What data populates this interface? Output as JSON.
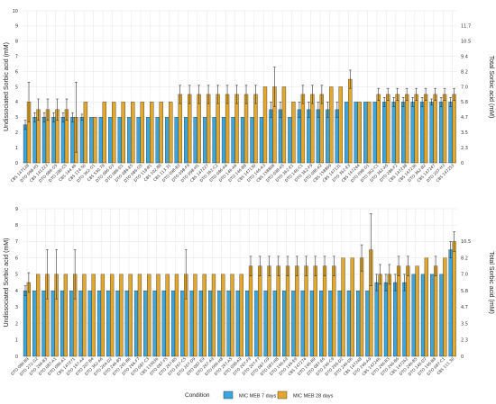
{
  "colors": {
    "mic7": "#3aa6dd",
    "mic28": "#e2a72b"
  },
  "legend": {
    "title": "Condition",
    "items": [
      {
        "label": "MIC MEB 7 days",
        "color": "#3aa6dd"
      },
      {
        "label": "MIC MEB 28 days",
        "color": "#e2a72b"
      }
    ]
  },
  "chart_data": [
    {
      "type": "bar",
      "ylabel": "Undissociated Sorbic acid (mM)",
      "ylabel_right": "Total Sorbic acid (mM)",
      "ylim": [
        0,
        10
      ],
      "yticks": [
        0,
        1,
        2,
        3,
        4,
        5,
        6,
        7,
        8,
        9,
        10
      ],
      "yticks_right": [
        "0",
        "2.3",
        "3.5",
        "4.7",
        "5.8",
        "7.0",
        "8.2",
        "9.4",
        "10.5",
        "11.7"
      ],
      "grid": true,
      "categories": [
        "CBS 147128",
        "DTO 098-H1",
        "CBS 141223",
        "DTO 086-G5",
        "DTO 286-C5",
        "CBS 144.46",
        "CBS 114.50",
        "DTO 362-G1",
        "CBS 530.78",
        "DTO 086-D3",
        "DTO 086-D1",
        "DTO 086-E5",
        "DTO 086-G5",
        "DTO 118-B1",
        "CBS 102.88",
        "CBS 113.31",
        "DTO 098-B3",
        "DTO 098-F9",
        "DTO 098-H1",
        "CBS 147227",
        "DTO 362-C2",
        "DTO 086-A6",
        "DTO 146-A6",
        "DTO 146-B8",
        "CBS 147130",
        "DTO 146-A3",
        "CBS 158808",
        "DTO 098-A5",
        "DTO 362-E1",
        "DTO 146-C1",
        "DTO 362-F9",
        "DTO 086-A2",
        "CBS 158809",
        "CBS 147131",
        "DTO 362-E3",
        "CBS 147244",
        "DTO 098-G1",
        "DTO 362-C1",
        "DTO 362-A5",
        "DTO 286-F2",
        "CBS 147238",
        "CBS 147236",
        "DTO 362-B2",
        "CBS 147247",
        "DTO 207-H3",
        "CBS 147253"
      ],
      "series": [
        {
          "name": "MIC MEB 7 days",
          "values": [
            2.5,
            3,
            3,
            3,
            3,
            3,
            3,
            3,
            3,
            3,
            3,
            3,
            3,
            3,
            3,
            3,
            3,
            3,
            3,
            3,
            3,
            3,
            3,
            3,
            3,
            3,
            3.5,
            3.5,
            3,
            3.5,
            3.5,
            3.5,
            3.5,
            3.5,
            4,
            4,
            4,
            4,
            4,
            4,
            4,
            4,
            4,
            4,
            4,
            4
          ],
          "err": [
            0.3,
            0.3,
            0.3,
            0.3,
            0.3,
            0.3,
            0.2,
            0,
            0,
            0,
            0,
            0,
            0,
            0,
            0,
            0,
            0,
            0,
            0,
            0,
            0,
            0,
            0,
            0,
            0,
            0,
            0.5,
            0.5,
            0,
            0.5,
            0.5,
            0.5,
            0.5,
            0.5,
            0,
            0,
            0,
            0,
            0.3,
            0.3,
            0.3,
            0.3,
            0.3,
            0.2,
            0.3,
            0.3
          ]
        },
        {
          "name": "MIC MEB 28 days",
          "values": [
            4,
            3.5,
            3.5,
            3.5,
            3.5,
            3,
            4,
            3,
            4,
            4,
            4,
            4,
            4,
            4,
            4,
            4,
            4.5,
            4.5,
            4.5,
            4.5,
            4.5,
            4.5,
            4.5,
            4.5,
            4.5,
            5,
            5,
            5,
            4,
            4.5,
            4.5,
            4.5,
            5,
            5,
            5.5,
            4,
            4,
            4.5,
            4.5,
            4.5,
            4.5,
            4.5,
            4.5,
            4.5,
            4.5,
            4.5
          ],
          "err": [
            1.3,
            0.7,
            0.7,
            0.7,
            0.7,
            2.3,
            0,
            0,
            0,
            0,
            0,
            0,
            0,
            0,
            0,
            0,
            0.6,
            0.6,
            0.6,
            0.6,
            0.6,
            0.6,
            0.6,
            0.6,
            0.6,
            0,
            1.3,
            0,
            0,
            0.6,
            0.6,
            0.6,
            0,
            0,
            0.6,
            0,
            0,
            0.4,
            0.4,
            0.4,
            0.4,
            0.4,
            0.4,
            0.4,
            0.4,
            0.4
          ]
        }
      ]
    },
    {
      "type": "bar",
      "ylabel": "Undissociated Sorbic acid (mM)",
      "ylabel_right": "Total Sorbic acid (mM)",
      "ylim": [
        0,
        9
      ],
      "yticks": [
        0,
        1,
        2,
        3,
        4,
        5,
        6,
        7,
        8,
        9
      ],
      "yticks_right": [
        "0",
        "2.3",
        "3.5",
        "4.7",
        "5.8",
        "7.0",
        "8.2",
        "10.5"
      ],
      "grid": true,
      "categories": [
        "DTO 086-B9",
        "DTO 272-G2",
        "DTO 266-B3",
        "DTO 087-A1",
        "DTO 086-A1",
        "CBS 147271",
        "DTO 167-A4",
        "DTO 207-B4",
        "DTO 362-A6",
        "DTO 264-D2",
        "DTO 246-B5",
        "DTO 241-B6",
        "DTO 266-F7",
        "DTO 087-C3",
        "CBS 133036",
        "DTO 087-F5",
        "DTO 267-B5",
        "DTO 267-C5",
        "DTO 207-D9",
        "DTO 087-E9",
        "DTO 267-A9",
        "DTO 066-H8",
        "DTO 267-A5",
        "DTO 098-A9",
        "DTO 207-F9",
        "DTO 207-F7",
        "DTO 087-G9",
        "DTO 087-H8",
        "DTO 146-A9",
        "DTO 146-E9",
        "CBS 147274",
        "DTO 146-B9",
        "DTO 087-E6",
        "DTO 246-C9",
        "DTO 266-D2",
        "DTO 246-D6",
        "CBS 147248",
        "DTO 246-A9",
        "CBS 147246",
        "DTO 246-B3",
        "DTO 246-B6",
        "CBS 147262",
        "DTO 246-B5",
        "DTO 146-D7",
        "DTO 146-B8",
        "DTO 087-C1",
        "CBS 111.30"
      ],
      "series": [
        {
          "name": "MIC MEB 7 days",
          "values": [
            4,
            4,
            4,
            4,
            4,
            4,
            4,
            4,
            4,
            4,
            4,
            4,
            4,
            4,
            4,
            4,
            4,
            4,
            4,
            4,
            4,
            4,
            4,
            4,
            4,
            4,
            4,
            4,
            4,
            4,
            4,
            4,
            4,
            4,
            4,
            4,
            4,
            4,
            4.5,
            4.5,
            4.5,
            4.5,
            5,
            5,
            5,
            5,
            6.5
          ],
          "err": [
            0.3,
            0,
            0,
            0,
            0,
            0,
            0,
            0,
            0,
            0,
            0,
            0,
            0,
            0,
            0,
            0,
            0,
            0,
            0,
            0,
            0,
            0,
            0,
            0,
            0,
            0,
            0,
            0,
            0,
            0,
            0,
            0,
            0,
            0,
            0,
            0,
            0,
            0,
            0.5,
            0.5,
            0.5,
            0.5,
            0,
            0,
            0,
            0,
            0.5
          ]
        },
        {
          "name": "MIC MEB 28 days",
          "values": [
            4.5,
            5,
            5,
            5,
            5,
            5,
            5,
            5,
            5,
            5,
            5,
            5,
            5,
            5,
            5,
            5,
            5,
            5,
            5,
            5,
            5,
            5,
            5,
            5,
            5.5,
            5.5,
            5.5,
            5.5,
            5.5,
            5.5,
            5.5,
            5.5,
            5.5,
            5.5,
            6,
            6,
            6,
            6.5,
            5,
            5,
            5.5,
            5.5,
            5.5,
            6,
            5.5,
            6,
            7
          ],
          "err": [
            0.6,
            0,
            1.5,
            1.5,
            0,
            1.5,
            0,
            0,
            0,
            0,
            0,
            0,
            0,
            0,
            0,
            0,
            0,
            1.5,
            0,
            0,
            0,
            0,
            0,
            0,
            0.6,
            0.6,
            0.6,
            0.6,
            0.6,
            0.6,
            0.6,
            0.6,
            0.6,
            0.6,
            0,
            0,
            0.8,
            2.2,
            0.6,
            0.6,
            0.6,
            0.6,
            0,
            0,
            0.6,
            0,
            0.6
          ]
        }
      ]
    }
  ]
}
